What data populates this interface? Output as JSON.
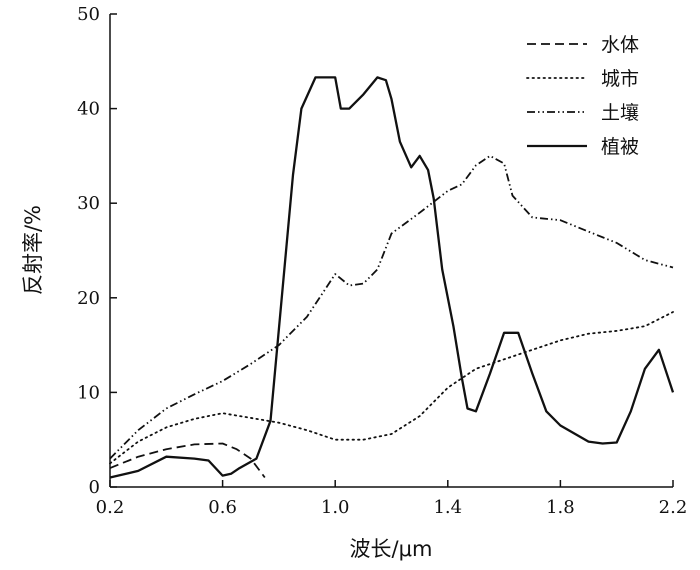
{
  "chart_data": {
    "type": "line",
    "title": "",
    "xlabel": "波长/μm",
    "ylabel": "反射率/%",
    "xlim": [
      0.2,
      2.2
    ],
    "ylim": [
      0,
      50
    ],
    "xticks": [
      0.2,
      0.6,
      1.0,
      1.4,
      1.8,
      2.2
    ],
    "xtick_labels": [
      "0.2",
      "0.6",
      "1.0",
      "1.4",
      "1.8",
      "2.2"
    ],
    "yticks": [
      0,
      10,
      20,
      30,
      40,
      50
    ],
    "ytick_labels": [
      "0",
      "10",
      "20",
      "30",
      "40",
      "50"
    ],
    "grid": false,
    "legend_position": "top-right",
    "series": [
      {
        "name": "水体",
        "style": "dashed",
        "x": [
          0.2,
          0.3,
          0.4,
          0.5,
          0.6,
          0.65,
          0.7,
          0.75
        ],
        "y": [
          2.0,
          3.2,
          4.0,
          4.5,
          4.6,
          4.0,
          3.0,
          1.0
        ]
      },
      {
        "name": "城市",
        "style": "dotted",
        "x": [
          0.2,
          0.3,
          0.4,
          0.5,
          0.6,
          0.7,
          0.8,
          0.9,
          1.0,
          1.1,
          1.2,
          1.3,
          1.4,
          1.5,
          1.6,
          1.7,
          1.8,
          1.9,
          2.0,
          2.1,
          2.2
        ],
        "y": [
          2.5,
          4.8,
          6.3,
          7.2,
          7.8,
          7.3,
          6.8,
          6.0,
          5.0,
          5.0,
          5.6,
          7.5,
          10.5,
          12.5,
          13.5,
          14.5,
          15.5,
          16.2,
          16.5,
          17.0,
          18.5
        ]
      },
      {
        "name": "土壤",
        "style": "dash-dot-dot",
        "x": [
          0.2,
          0.3,
          0.4,
          0.5,
          0.6,
          0.7,
          0.8,
          0.9,
          1.0,
          1.05,
          1.1,
          1.15,
          1.2,
          1.3,
          1.4,
          1.45,
          1.5,
          1.55,
          1.6,
          1.63,
          1.7,
          1.8,
          1.9,
          2.0,
          2.1,
          2.2
        ],
        "y": [
          3.0,
          6.0,
          8.3,
          9.8,
          11.2,
          13.0,
          15.0,
          18.0,
          22.5,
          21.3,
          21.5,
          23.0,
          26.8,
          29.0,
          31.3,
          32.0,
          34.0,
          35.0,
          34.2,
          30.8,
          28.5,
          28.2,
          27.0,
          25.8,
          24.0,
          23.2
        ]
      },
      {
        "name": "植被",
        "style": "solid",
        "x": [
          0.2,
          0.3,
          0.4,
          0.5,
          0.55,
          0.6,
          0.63,
          0.66,
          0.72,
          0.77,
          0.85,
          0.88,
          0.93,
          1.0,
          1.02,
          1.05,
          1.1,
          1.15,
          1.18,
          1.2,
          1.23,
          1.27,
          1.3,
          1.33,
          1.35,
          1.38,
          1.42,
          1.45,
          1.47,
          1.5,
          1.55,
          1.6,
          1.65,
          1.7,
          1.75,
          1.8,
          1.9,
          1.95,
          2.0,
          2.05,
          2.1,
          2.15,
          2.2
        ],
        "y": [
          1.0,
          1.7,
          3.2,
          3.0,
          2.8,
          1.2,
          1.4,
          2.0,
          3.0,
          7.0,
          33.0,
          40.0,
          43.3,
          43.3,
          40.0,
          40.0,
          41.5,
          43.3,
          43.0,
          41.0,
          36.5,
          33.8,
          35.0,
          33.5,
          30.5,
          23.0,
          17.0,
          11.5,
          8.3,
          8.0,
          12.0,
          16.3,
          16.3,
          12.0,
          8.0,
          6.5,
          4.8,
          4.6,
          4.7,
          8.0,
          12.5,
          14.5,
          10.0
        ]
      }
    ]
  }
}
